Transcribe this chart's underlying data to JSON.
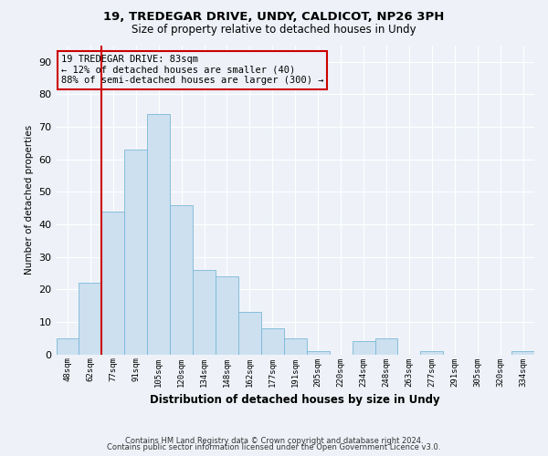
{
  "title1": "19, TREDEGAR DRIVE, UNDY, CALDICOT, NP26 3PH",
  "title2": "Size of property relative to detached houses in Undy",
  "xlabel": "Distribution of detached houses by size in Undy",
  "ylabel": "Number of detached properties",
  "footnote1": "Contains HM Land Registry data © Crown copyright and database right 2024.",
  "footnote2": "Contains public sector information licensed under the Open Government Licence v3.0.",
  "bar_color": "#cce0f0",
  "bar_edge_color": "#7ab8d8",
  "vline_color": "#cc0000",
  "vline_x_index": 2,
  "annotation_text": "19 TREDEGAR DRIVE: 83sqm\n← 12% of detached houses are smaller (40)\n88% of semi-detached houses are larger (300) →",
  "annotation_box_color": "#cc0000",
  "categories": [
    "48sqm",
    "62sqm",
    "77sqm",
    "91sqm",
    "105sqm",
    "120sqm",
    "134sqm",
    "148sqm",
    "162sqm",
    "177sqm",
    "191sqm",
    "205sqm",
    "220sqm",
    "234sqm",
    "248sqm",
    "263sqm",
    "277sqm",
    "291sqm",
    "305sqm",
    "320sqm",
    "334sqm"
  ],
  "values": [
    5,
    22,
    44,
    63,
    74,
    46,
    26,
    24,
    13,
    8,
    5,
    1,
    0,
    4,
    5,
    0,
    1,
    0,
    0,
    0,
    1
  ],
  "ylim": [
    0,
    95
  ],
  "yticks": [
    0,
    10,
    20,
    30,
    40,
    50,
    60,
    70,
    80,
    90
  ],
  "bg_color": "#eef2f8",
  "grid_color": "#ffffff"
}
